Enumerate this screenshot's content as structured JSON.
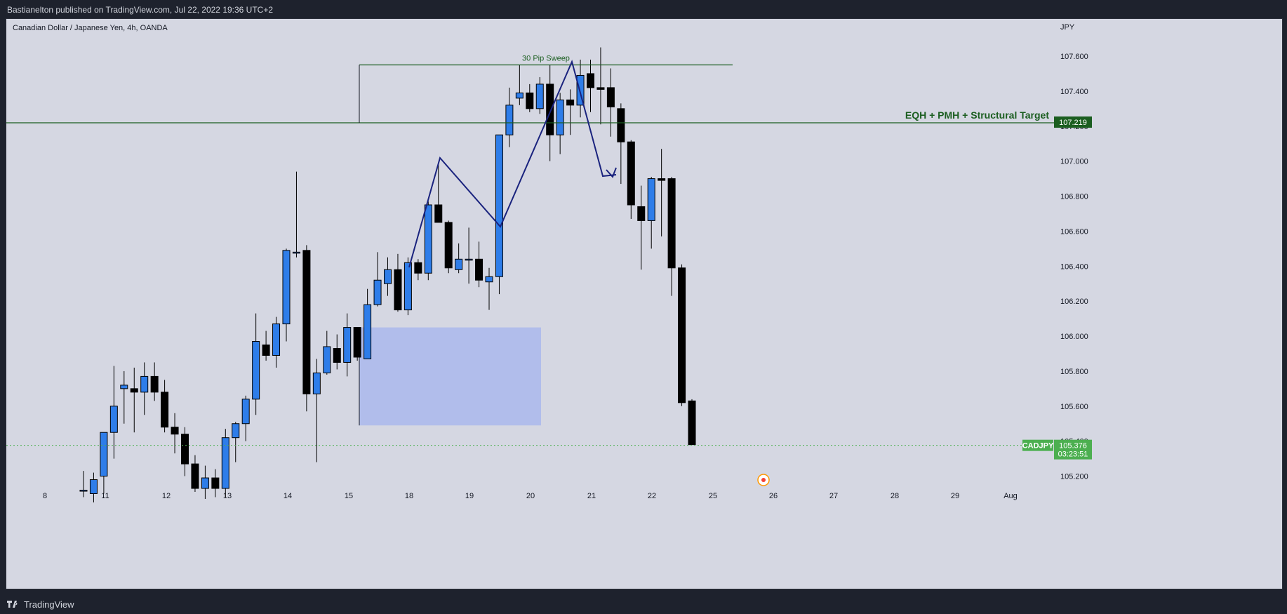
{
  "header": {
    "publish_text": "Bastianelton published on TradingView.com, Jul 22, 2022 19:36 UTC+2"
  },
  "chart_info": {
    "symbol_title": "Canadian Dollar / Japanese Yen, 4h, OANDA",
    "currency": "JPY"
  },
  "footer": {
    "brand": "TradingView",
    "logo_icon": "tradingview-logo-icon"
  },
  "colors": {
    "bull": "#2e7de9",
    "bear": "#000000",
    "green_line": "#1b5e20",
    "zigzag": "#1a237e",
    "zone": "#aab8ec",
    "price_tag": "#4caf50"
  },
  "chart_data": {
    "type": "candlestick",
    "ylim": [
      105.1,
      107.75
    ],
    "y_ticks": [
      "107.600",
      "107.400",
      "107.200",
      "107.000",
      "106.800",
      "106.600",
      "106.400",
      "106.200",
      "106.000",
      "105.800",
      "105.600",
      "105.400",
      "105.200"
    ],
    "x_ticks": [
      "8",
      "11",
      "12",
      "13",
      "14",
      "15",
      "18",
      "19",
      "20",
      "21",
      "22",
      "25",
      "26",
      "27",
      "28",
      "29",
      "Aug"
    ],
    "candles": [
      {
        "o": 105.12,
        "h": 105.23,
        "l": 105.08,
        "c": 105.12
      },
      {
        "o": 105.1,
        "h": 105.22,
        "l": 105.05,
        "c": 105.18
      },
      {
        "o": 105.2,
        "h": 105.45,
        "l": 105.1,
        "c": 105.45
      },
      {
        "o": 105.45,
        "h": 105.83,
        "l": 105.3,
        "c": 105.6
      },
      {
        "o": 105.7,
        "h": 105.8,
        "l": 105.5,
        "c": 105.72
      },
      {
        "o": 105.7,
        "h": 105.82,
        "l": 105.45,
        "c": 105.68
      },
      {
        "o": 105.68,
        "h": 105.85,
        "l": 105.55,
        "c": 105.77
      },
      {
        "o": 105.77,
        "h": 105.85,
        "l": 105.63,
        "c": 105.68
      },
      {
        "o": 105.68,
        "h": 105.75,
        "l": 105.45,
        "c": 105.48
      },
      {
        "o": 105.48,
        "h": 105.56,
        "l": 105.33,
        "c": 105.44
      },
      {
        "o": 105.44,
        "h": 105.48,
        "l": 105.2,
        "c": 105.27
      },
      {
        "o": 105.27,
        "h": 105.32,
        "l": 105.11,
        "c": 105.13
      },
      {
        "o": 105.13,
        "h": 105.26,
        "l": 105.07,
        "c": 105.19
      },
      {
        "o": 105.19,
        "h": 105.24,
        "l": 105.08,
        "c": 105.13
      },
      {
        "o": 105.13,
        "h": 105.47,
        "l": 105.08,
        "c": 105.42
      },
      {
        "o": 105.42,
        "h": 105.51,
        "l": 105.28,
        "c": 105.5
      },
      {
        "o": 105.5,
        "h": 105.66,
        "l": 105.4,
        "c": 105.64
      },
      {
        "o": 105.64,
        "h": 106.13,
        "l": 105.55,
        "c": 105.97
      },
      {
        "o": 105.95,
        "h": 106.03,
        "l": 105.86,
        "c": 105.89
      },
      {
        "o": 105.89,
        "h": 106.11,
        "l": 105.82,
        "c": 106.07
      },
      {
        "o": 106.07,
        "h": 106.5,
        "l": 105.97,
        "c": 106.49
      },
      {
        "o": 106.48,
        "h": 106.94,
        "l": 106.45,
        "c": 106.48
      },
      {
        "o": 106.49,
        "h": 106.52,
        "l": 105.57,
        "c": 105.67
      },
      {
        "o": 105.67,
        "h": 105.87,
        "l": 105.28,
        "c": 105.79
      },
      {
        "o": 105.79,
        "h": 106.03,
        "l": 105.78,
        "c": 105.94
      },
      {
        "o": 105.93,
        "h": 106.01,
        "l": 105.81,
        "c": 105.85
      },
      {
        "o": 105.85,
        "h": 106.13,
        "l": 105.77,
        "c": 106.05
      },
      {
        "o": 106.05,
        "h": 106.05,
        "l": 105.86,
        "c": 105.88
      },
      {
        "o": 105.87,
        "h": 106.27,
        "l": 105.87,
        "c": 106.18
      },
      {
        "o": 106.18,
        "h": 106.48,
        "l": 106.17,
        "c": 106.32
      },
      {
        "o": 106.3,
        "h": 106.45,
        "l": 106.23,
        "c": 106.38
      },
      {
        "o": 106.38,
        "h": 106.47,
        "l": 106.14,
        "c": 106.15
      },
      {
        "o": 106.15,
        "h": 106.45,
        "l": 106.12,
        "c": 106.42
      },
      {
        "o": 106.42,
        "h": 106.44,
        "l": 106.32,
        "c": 106.36
      },
      {
        "o": 106.36,
        "h": 106.77,
        "l": 106.32,
        "c": 106.75
      },
      {
        "o": 106.75,
        "h": 106.98,
        "l": 106.65,
        "c": 106.65
      },
      {
        "o": 106.65,
        "h": 106.66,
        "l": 106.36,
        "c": 106.39
      },
      {
        "o": 106.38,
        "h": 106.53,
        "l": 106.36,
        "c": 106.44
      },
      {
        "o": 106.44,
        "h": 106.62,
        "l": 106.3,
        "c": 106.44
      },
      {
        "o": 106.44,
        "h": 106.54,
        "l": 106.28,
        "c": 106.32
      },
      {
        "o": 106.31,
        "h": 106.39,
        "l": 106.15,
        "c": 106.34
      },
      {
        "o": 106.34,
        "h": 107.15,
        "l": 106.24,
        "c": 107.15
      },
      {
        "o": 107.15,
        "h": 107.42,
        "l": 107.08,
        "c": 107.32
      },
      {
        "o": 107.36,
        "h": 107.55,
        "l": 107.32,
        "c": 107.39
      },
      {
        "o": 107.39,
        "h": 107.44,
        "l": 107.28,
        "c": 107.3
      },
      {
        "o": 107.3,
        "h": 107.48,
        "l": 107.27,
        "c": 107.44
      },
      {
        "o": 107.44,
        "h": 107.55,
        "l": 107.0,
        "c": 107.15
      },
      {
        "o": 107.15,
        "h": 107.39,
        "l": 107.04,
        "c": 107.35
      },
      {
        "o": 107.35,
        "h": 107.41,
        "l": 107.15,
        "c": 107.32
      },
      {
        "o": 107.32,
        "h": 107.58,
        "l": 107.25,
        "c": 107.49
      },
      {
        "o": 107.5,
        "h": 107.58,
        "l": 107.28,
        "c": 107.42
      },
      {
        "o": 107.42,
        "h": 107.65,
        "l": 107.21,
        "c": 107.41
      },
      {
        "o": 107.42,
        "h": 107.53,
        "l": 107.14,
        "c": 107.31
      },
      {
        "o": 107.3,
        "h": 107.33,
        "l": 106.87,
        "c": 107.11
      },
      {
        "o": 107.11,
        "h": 107.12,
        "l": 106.67,
        "c": 106.75
      },
      {
        "o": 106.74,
        "h": 106.86,
        "l": 106.38,
        "c": 106.66
      },
      {
        "o": 106.66,
        "h": 106.91,
        "l": 106.5,
        "c": 106.9
      },
      {
        "o": 106.9,
        "h": 107.07,
        "l": 106.57,
        "c": 106.89
      },
      {
        "o": 106.9,
        "h": 106.91,
        "l": 106.23,
        "c": 106.39
      },
      {
        "o": 106.39,
        "h": 106.41,
        "l": 105.6,
        "c": 105.62
      },
      {
        "o": 105.63,
        "h": 105.64,
        "l": 105.38,
        "c": 105.38
      }
    ],
    "levels": [
      {
        "label": "EQH + PMH + Structural Target",
        "price": 107.219,
        "price_label": "107.219"
      },
      {
        "label": "30 Pip Sweep",
        "price": 107.55
      }
    ],
    "zone": {
      "top": 106.05,
      "bottom": 105.49
    },
    "last_price": {
      "symbol": "CADJPY",
      "price": "105.376",
      "countdown": "03:23:51"
    }
  }
}
